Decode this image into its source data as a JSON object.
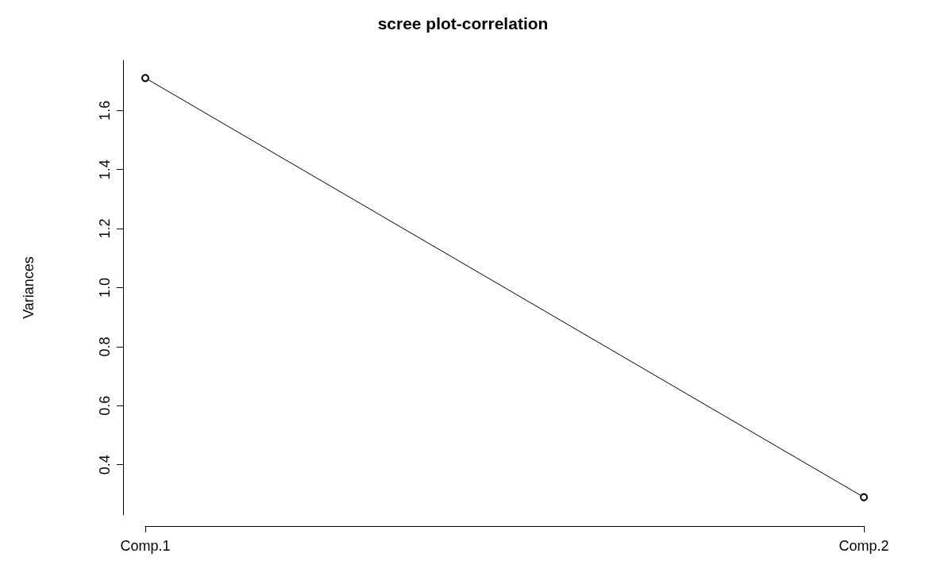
{
  "chart_data": {
    "type": "line",
    "title": "scree plot-correlation",
    "ylabel": "Variances",
    "categories": [
      "Comp.1",
      "Comp.2"
    ],
    "series": [
      {
        "color": "#000000",
        "values": [
          1.71,
          0.29
        ]
      }
    ],
    "ylim": [
      0.23,
      1.77
    ],
    "yticks": [
      0.4,
      0.6,
      0.8,
      {
        "value": 1.0,
        "label": "1.0"
      },
      1.2,
      1.4,
      1.6
    ],
    "grid": false,
    "marker": "circle",
    "line_style": "solid"
  }
}
